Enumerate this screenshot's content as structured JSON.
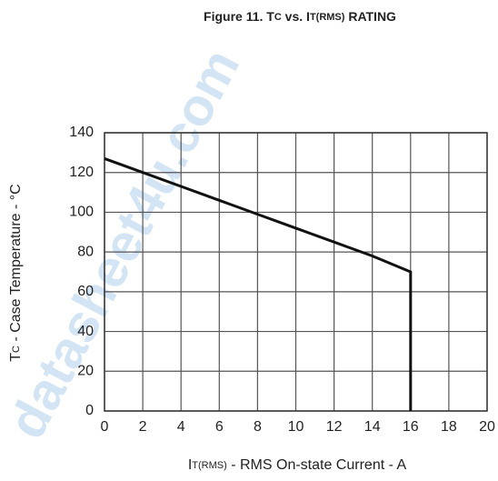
{
  "chart_data": {
    "type": "line",
    "title": [
      "Figure 11.  T",
      "C",
      " vs. I",
      "T(RMS)",
      " RATING"
    ],
    "xlabel": [
      "I",
      "T(RMS)",
      " - RMS On-state Current - A"
    ],
    "ylabel": [
      "T",
      "C",
      " - Case Temperature - °C"
    ],
    "watermark": "datasheet4u.com",
    "x": [
      0,
      2,
      4,
      6,
      8,
      10,
      12,
      14,
      16,
      16
    ],
    "values": [
      127,
      120,
      113,
      106,
      99,
      92,
      85,
      78,
      70,
      0
    ],
    "color": "#111111",
    "xlim": [
      0,
      20
    ],
    "xticks": [
      0,
      2,
      4,
      6,
      8,
      10,
      12,
      14,
      16,
      18,
      20
    ],
    "ylim": [
      0,
      140
    ],
    "yticks": [
      0,
      20,
      40,
      60,
      80,
      100,
      120,
      140
    ],
    "grid": true
  }
}
